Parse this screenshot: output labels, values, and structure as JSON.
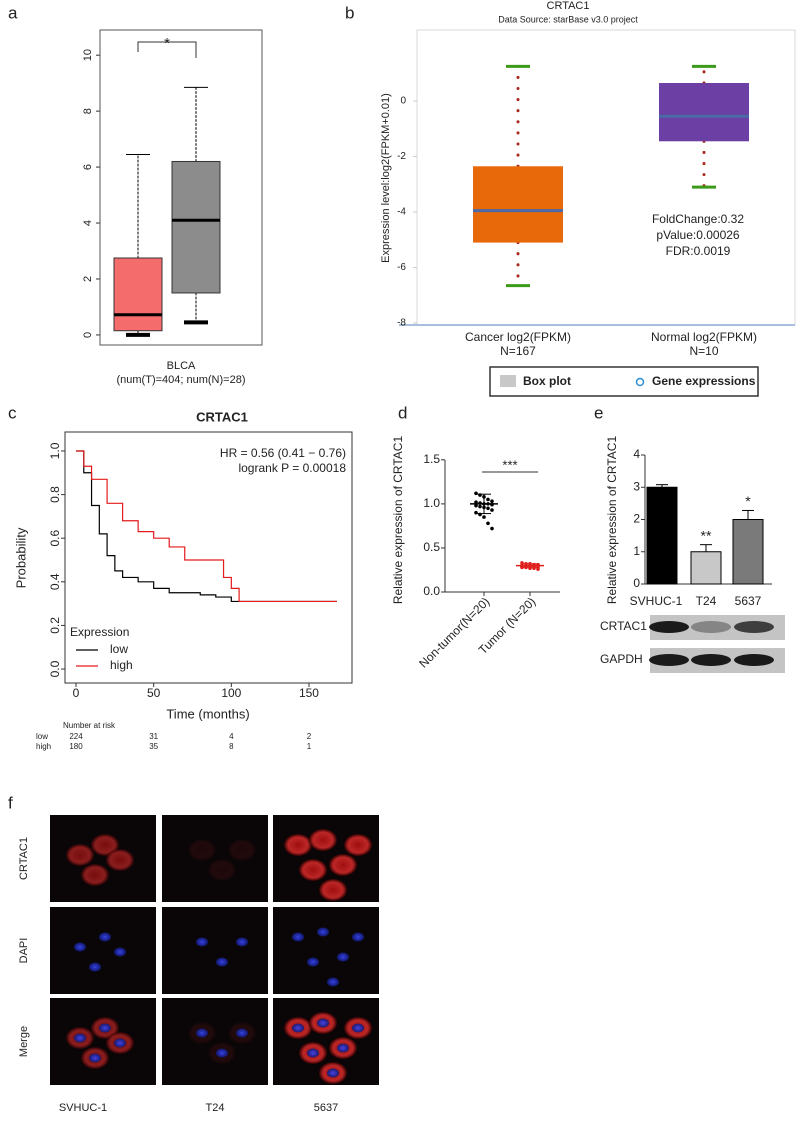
{
  "chart_data": [
    {
      "panel": "a",
      "type": "box",
      "annotation": "*",
      "xlabel": "BLCA",
      "note": "(num(T)=404; num(N)=28)",
      "ylim": [
        -0.36,
        10.9
      ],
      "yticks": [
        0,
        2,
        4,
        6,
        8,
        10
      ],
      "boxes": [
        {
          "color": "#f46c6c",
          "min": 0,
          "q1": 0.15,
          "median": 0.72,
          "q3": 2.75,
          "max": 6.45
        },
        {
          "color": "#8c8c8c",
          "min": 0.45,
          "q1": 1.5,
          "median": 4.1,
          "q3": 6.2,
          "max": 8.85
        }
      ]
    },
    {
      "panel": "b",
      "type": "box",
      "title": "CRTAC1",
      "subtitle": "Data Source: starBase v3.0 project",
      "ylabel": "Expression level:log2(FPKM+0.01)",
      "ylim": [
        -8.07,
        2.56
      ],
      "yticks": [
        -8,
        -6,
        -4,
        -2,
        0
      ],
      "categories": [
        "Cancer log2(FPKM)",
        "Normal log2(FPKM)"
      ],
      "counts": [
        "N=167",
        "N=10"
      ],
      "cap_color": "#3c9a1a",
      "median_color": "#4a6aa8",
      "whisker_color": "#a8281e",
      "boxes": [
        {
          "color": "#e8690a",
          "min": -6.65,
          "q1": -5.1,
          "median": -3.95,
          "q3": -2.35,
          "max": 1.25
        },
        {
          "color": "#6b3fa3",
          "min": -3.1,
          "q1": -1.45,
          "median": -0.55,
          "q3": 0.65,
          "max": 1.25
        }
      ],
      "annotations": [
        "FoldChange:0.32",
        "pValue:0.00026",
        "FDR:0.0019"
      ],
      "legend_items": [
        "Box plot",
        "Gene expressions"
      ]
    },
    {
      "panel": "c",
      "type": "line",
      "title": "CRTAC1",
      "annotations": [
        "HR = 0.56 (0.41 − 0.76)",
        "logrank P = 0.00018"
      ],
      "xlabel": "Time (months)",
      "ylabel": "Probability",
      "legend_title": "Expression",
      "xlim": [
        -7.1,
        177.7
      ],
      "xticks": [
        0,
        50,
        100,
        150
      ],
      "ylim": [
        -0.064,
        1.087
      ],
      "yticks": [
        {
          "value": 0,
          "label": "0.0"
        },
        0.2,
        0.4,
        0.6,
        0.8,
        {
          "value": 1,
          "label": "1.0"
        }
      ],
      "series": [
        {
          "name": "low",
          "color": "#000000",
          "x": [
            0,
            5,
            10,
            15,
            20,
            25,
            30,
            40,
            50,
            60,
            80,
            90,
            100,
            168
          ],
          "values": [
            1.0,
            0.9,
            0.75,
            0.62,
            0.52,
            0.45,
            0.42,
            0.4,
            0.37,
            0.35,
            0.34,
            0.33,
            0.31,
            0.31
          ]
        },
        {
          "name": "high",
          "color": "#e41a1c",
          "x": [
            0,
            5,
            10,
            20,
            30,
            40,
            50,
            60,
            70,
            90,
            95,
            100,
            105,
            168
          ],
          "values": [
            1.0,
            0.93,
            0.87,
            0.76,
            0.68,
            0.63,
            0.6,
            0.56,
            0.5,
            0.5,
            0.42,
            0.37,
            0.31,
            0.31
          ]
        }
      ],
      "risk_table": {
        "title": "Number at risk",
        "rows": [
          {
            "name": "low",
            "color": "#000000",
            "values": [
              224,
              31,
              4,
              2
            ]
          },
          {
            "name": "high",
            "color": "#e41a1c",
            "values": [
              180,
              35,
              8,
              1
            ]
          }
        ]
      }
    },
    {
      "panel": "d",
      "type": "dot",
      "ylabel": "Relative expression of CRTAC1",
      "annotation": "***",
      "ylim": [
        0,
        1.6
      ],
      "yticks": [
        {
          "value": 0,
          "label": "0.0"
        },
        0.5,
        {
          "value": 1,
          "label": "1.0"
        },
        1.5
      ],
      "categories": [
        "Non-tumor(N=20)",
        "Tumor (N=20)"
      ],
      "colors": [
        "#000000",
        "#e0201c"
      ],
      "means": [
        1.0,
        0.3
      ],
      "errors": [
        0.11,
        0.02
      ],
      "points": [
        [
          1.12,
          1.1,
          1.08,
          1.05,
          1.03,
          1.02,
          1.01,
          1.0,
          1.0,
          0.99,
          0.98,
          0.97,
          0.96,
          0.95,
          0.93,
          0.9,
          0.88,
          0.85,
          0.78,
          0.72
        ],
        [
          0.33,
          0.32,
          0.32,
          0.31,
          0.31,
          0.3,
          0.3,
          0.3,
          0.3,
          0.3,
          0.29,
          0.29,
          0.29,
          0.29,
          0.28,
          0.28,
          0.28,
          0.27,
          0.27,
          0.26
        ]
      ]
    },
    {
      "panel": "e",
      "type": "bar",
      "ylabel": "Relative expression of CRTAC1",
      "ylim": [
        0,
        4
      ],
      "yticks": [
        0,
        1,
        2,
        3,
        4
      ],
      "categories": [
        "SVHUC-1",
        "T24",
        "5637"
      ],
      "values": [
        3.0,
        1.0,
        2.0
      ],
      "errors": [
        0.08,
        0.22,
        0.28
      ],
      "colors": [
        "#000000",
        "#c8c8c8",
        "#7a7a7a"
      ],
      "annotations": [
        null,
        "**",
        "*"
      ],
      "blot": {
        "rows": [
          "CRTAC1",
          "GAPDH"
        ]
      }
    }
  ],
  "microscopy": {
    "panel": "f",
    "rows": [
      "CRTAC1",
      "DAPI",
      "Merge"
    ],
    "columns": [
      "SVHUC-1",
      "T24",
      "5637"
    ]
  }
}
